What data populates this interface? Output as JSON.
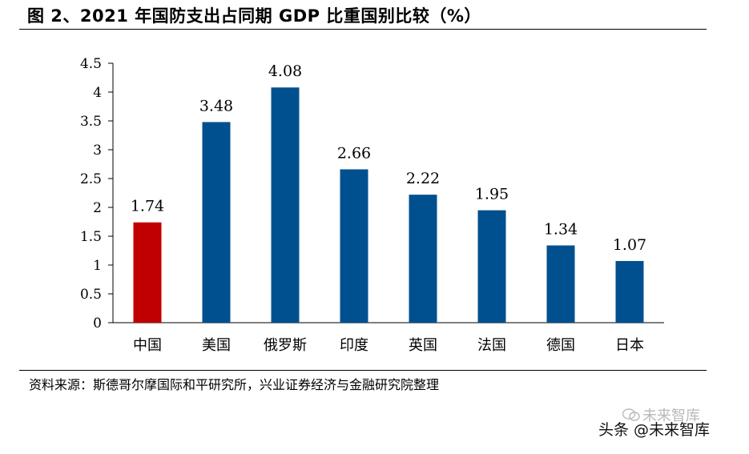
{
  "header": {
    "title": "图 2、2021 年国防支出占同期 GDP 比重国别比较（%）"
  },
  "chart_data": {
    "type": "bar",
    "title": "图 2、2021 年国防支出占同期 GDP 比重国别比较（%）",
    "categories": [
      "中国",
      "美国",
      "俄罗斯",
      "印度",
      "英国",
      "法国",
      "德国",
      "日本"
    ],
    "values": [
      1.74,
      3.48,
      4.08,
      2.66,
      2.22,
      1.95,
      1.34,
      1.07
    ],
    "data_labels": [
      "1.74",
      "3.48",
      "4.08",
      "2.66",
      "2.22",
      "1.95",
      "1.34",
      "1.07"
    ],
    "yticks": [
      "0",
      "0.5",
      "1",
      "1.5",
      "2",
      "2.5",
      "3",
      "3.5",
      "4",
      "4.5"
    ],
    "ylim": [
      0,
      4.5
    ],
    "xlabel": "",
    "ylabel": "",
    "grid": false,
    "colors": {
      "highlight": "#c00000",
      "default": "#00508f"
    },
    "highlight_index": 0
  },
  "footer": {
    "source": "资料来源：斯德哥尔摩国际和平研究所，兴业证券经济与金融研究院整理"
  },
  "watermark": {
    "text": "头条 @未来智库",
    "ghost": "未来智库"
  }
}
